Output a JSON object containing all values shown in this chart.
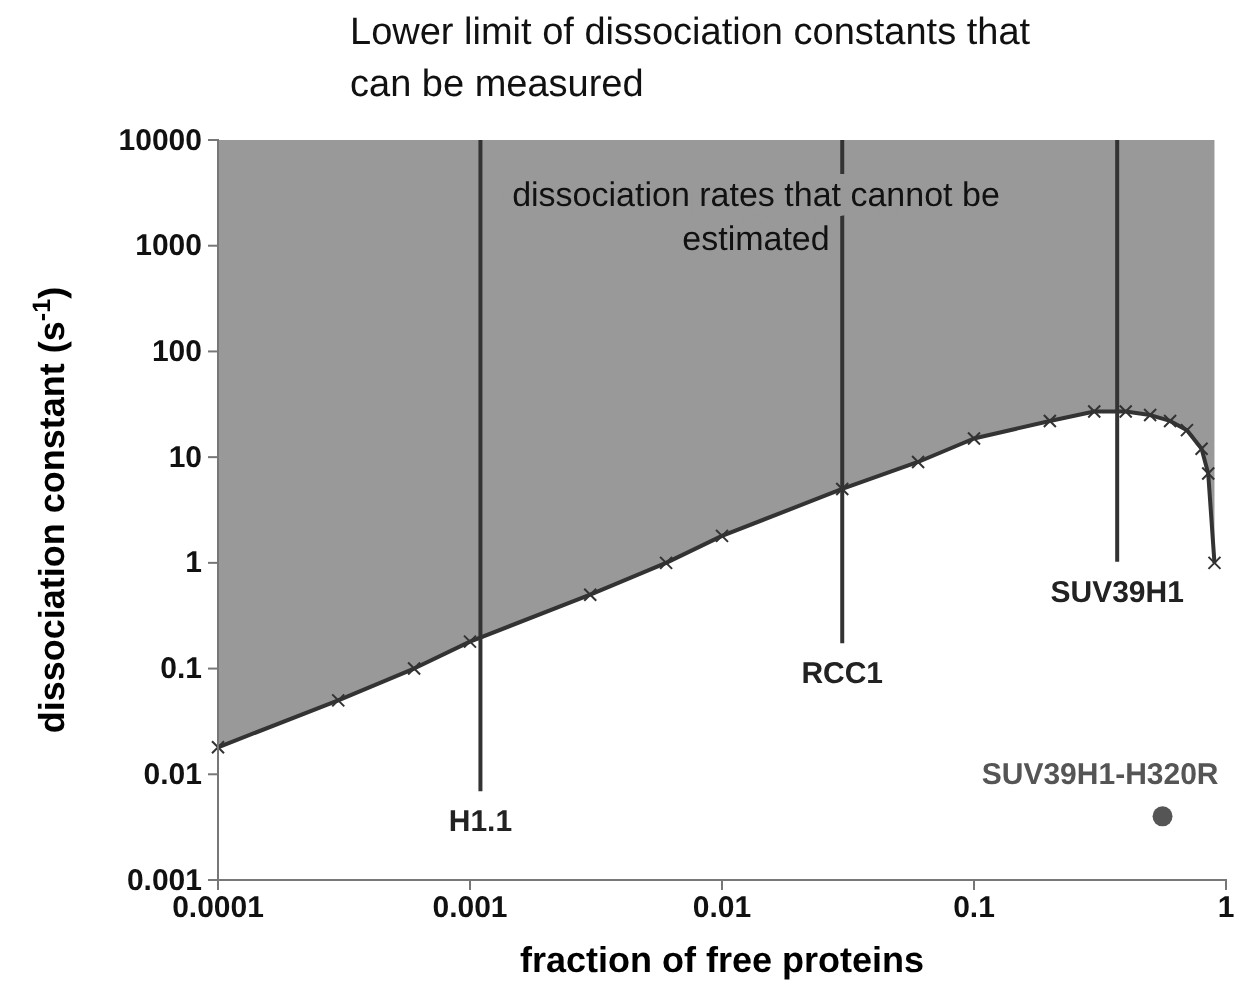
{
  "chart_data": {
    "type": "line",
    "title": "Lower limit of dissociation constants that can be measured",
    "xlabel": "fraction of free proteins",
    "ylabel": "dissociation constant (s$^{-1}$)",
    "log": "xy",
    "xlim": [
      0.0001,
      1
    ],
    "xticks": [
      0.0001,
      0.001,
      0.01,
      0.1,
      1
    ],
    "ylim": [
      0.001,
      10000
    ],
    "yticks": [
      0.001,
      0.01,
      0.1,
      1,
      10,
      100,
      1000,
      10000
    ],
    "grid": false,
    "legend": false,
    "marker": "cross",
    "annotations": [
      "dissociation rates that cannot be estimated"
    ],
    "series": [
      {
        "color": "#333333",
        "x": [
          0.0001,
          0.0003,
          0.0006,
          0.001,
          0.003,
          0.006,
          0.01,
          0.03,
          0.06,
          0.1,
          0.2,
          0.3,
          0.4,
          0.5,
          0.6,
          0.7,
          0.8,
          0.85,
          0.9
        ],
        "values": [
          0.018,
          0.05,
          0.1,
          0.18,
          0.5,
          1,
          1.8,
          5,
          9,
          15,
          22,
          27,
          27,
          25,
          22,
          18,
          12,
          7,
          1
        ],
        "lower": [
          0.018,
          0.05,
          0.1,
          0.18,
          0.5,
          1,
          1.8,
          5,
          9,
          15,
          22,
          27,
          27,
          25,
          22,
          18,
          12,
          7,
          1
        ],
        "upper": [
          10000,
          10000,
          10000,
          10000,
          10000,
          10000,
          10000,
          10000,
          10000,
          10000,
          10000,
          10000,
          10000,
          10000,
          10000,
          10000,
          10000,
          10000,
          10000
        ]
      },
      {
        "type": "scatter",
        "name": "SUV39H1-H320R",
        "color": "#555555",
        "marker": "circle",
        "x": [
          0.56
        ],
        "values": [
          0.004
        ]
      }
    ],
    "ref_lines": [
      {
        "axis": "x",
        "value": 0.0011,
        "label": "H1.1"
      },
      {
        "axis": "x",
        "value": 0.03,
        "label": "RCC1"
      },
      {
        "axis": "x",
        "value": 0.37,
        "label": "SUV39H1"
      }
    ]
  }
}
